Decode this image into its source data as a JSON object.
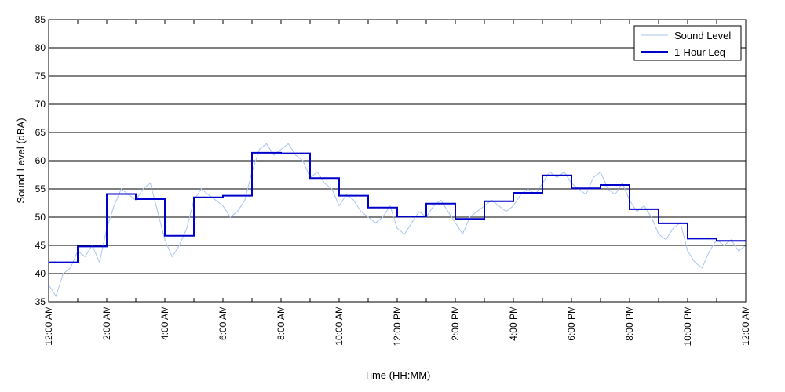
{
  "chart_data": {
    "type": "line",
    "xlabel": "Time (HH:MM)",
    "ylabel": "Sound Level (dBA)",
    "ylim": [
      35,
      85
    ],
    "y_ticks": [
      35,
      40,
      45,
      50,
      55,
      60,
      65,
      70,
      75,
      80,
      85
    ],
    "xlim": [
      0,
      24
    ],
    "x_ticks": [
      0,
      2,
      4,
      6,
      8,
      10,
      12,
      14,
      16,
      18,
      20,
      22,
      24
    ],
    "x_tick_labels": [
      "12:00 AM",
      "2:00 AM",
      "4:00 AM",
      "6:00 AM",
      "8:00 AM",
      "10:00 AM",
      "12:00 PM",
      "2:00 PM",
      "4:00 PM",
      "6:00 PM",
      "8:00 PM",
      "10:00 PM",
      "12:00 AM"
    ],
    "grid": "horizontal",
    "legend_position": "top-right",
    "series": [
      {
        "name": "Sound Level",
        "color": "#a9c4f2",
        "x": [
          0,
          0.25,
          0.5,
          0.75,
          1,
          1.25,
          1.5,
          1.75,
          2,
          2.25,
          2.5,
          2.75,
          3,
          3.25,
          3.5,
          3.75,
          4,
          4.25,
          4.5,
          4.75,
          5,
          5.25,
          5.5,
          5.75,
          6,
          6.25,
          6.5,
          6.75,
          7,
          7.25,
          7.5,
          7.75,
          8,
          8.25,
          8.5,
          8.75,
          9,
          9.25,
          9.5,
          9.75,
          10,
          10.25,
          10.5,
          10.75,
          11,
          11.25,
          11.5,
          11.75,
          12,
          12.25,
          12.5,
          12.75,
          13,
          13.25,
          13.5,
          13.75,
          14,
          14.25,
          14.5,
          14.75,
          15,
          15.25,
          15.5,
          15.75,
          16,
          16.25,
          16.5,
          16.75,
          17,
          17.25,
          17.5,
          17.75,
          18,
          18.25,
          18.5,
          18.75,
          19,
          19.25,
          19.5,
          19.75,
          20,
          20.25,
          20.5,
          20.75,
          21,
          21.25,
          21.5,
          21.75,
          22,
          22.25,
          22.5,
          22.75,
          23,
          23.25,
          23.5,
          23.75,
          24
        ],
        "y": [
          38,
          36,
          40,
          41,
          44,
          43,
          45,
          42,
          48,
          52,
          55,
          54,
          53,
          55,
          56,
          51,
          46,
          43,
          45,
          48,
          53,
          55,
          54,
          53,
          52,
          50,
          51,
          53,
          58,
          62,
          63,
          61,
          62,
          63,
          61,
          60,
          57,
          58,
          56,
          55,
          52,
          54,
          53,
          51,
          50,
          49,
          50,
          52,
          48,
          47,
          49,
          51,
          50,
          52,
          53,
          51,
          49,
          47,
          50,
          51,
          52,
          53,
          52,
          51,
          52,
          54,
          55,
          54,
          56,
          58,
          57,
          58,
          56,
          55,
          54,
          57,
          58,
          55,
          54,
          56,
          53,
          51,
          52,
          50,
          47,
          46,
          48,
          49,
          44,
          42,
          41,
          44,
          46,
          45,
          46,
          44,
          45
        ]
      },
      {
        "name": "1-Hour Leq",
        "color": "#0000cc",
        "x": [
          0,
          1,
          2,
          3,
          4,
          5,
          6,
          7,
          8,
          9,
          10,
          11,
          12,
          13,
          14,
          15,
          16,
          17,
          18,
          19,
          20,
          21,
          22,
          23
        ],
        "y": [
          42,
          44.8,
          54.1,
          53.2,
          46.7,
          53.5,
          53.8,
          61.4,
          61.3,
          56.9,
          53.8,
          51.7,
          50.1,
          52.4,
          49.7,
          52.8,
          54.3,
          57.4,
          55.1,
          55.7,
          51.4,
          48.9,
          46.2,
          45.8
        ],
        "step": "post"
      }
    ]
  }
}
